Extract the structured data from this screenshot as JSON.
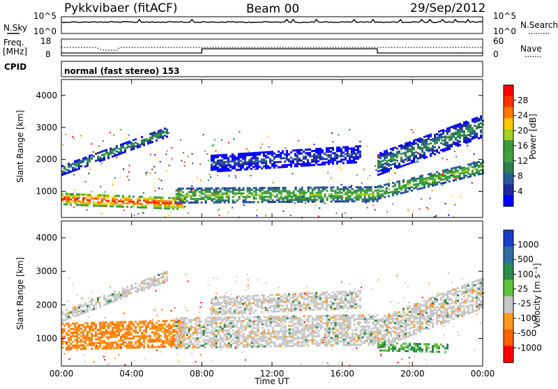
{
  "header": {
    "station": "Pykkvibaer (fitACF)",
    "beam": "Beam 00",
    "date": "29/Sep/2012"
  },
  "status_panels": {
    "nsky_label": "N.Sky",
    "nsky_ticks": [
      "10^5",
      "10^0"
    ],
    "nsearch_label": "N.Search",
    "nsearch_ticks": [
      "10^5",
      "10^0"
    ],
    "freq_label_1": "Freq.",
    "freq_label_2": "[MHz]",
    "freq_ticks": [
      "18",
      "8"
    ],
    "nave_label": "Nave",
    "nave_ticks": [
      "60",
      "0"
    ],
    "cpid_label": "CPID",
    "cpid_text": "normal (fast stereo) 153"
  },
  "axes": {
    "ylabel": "Slant Range [km]",
    "yticks": [
      "4000",
      "3000",
      "2000",
      "1000"
    ],
    "xlabel": "Time UT",
    "xticks": [
      "00:00",
      "04:00",
      "08:00",
      "12:00",
      "16:00",
      "20:00",
      "00:00"
    ]
  },
  "chart_data": [
    {
      "type": "heatmap",
      "title": "",
      "quantity": "Power",
      "colorbar_label": "Power [dB]",
      "colorbar_ticks": [
        "28",
        "24",
        "20",
        "16",
        "12",
        "8",
        "4"
      ],
      "colorbar_colors": [
        "#ff0000",
        "#ff3000",
        "#ff7800",
        "#ffc800",
        "#a0d020",
        "#3c9c3c",
        "#40a040",
        "#2e7d4e",
        "#2a5a9a",
        "#1e2aa0",
        "#0000ff"
      ],
      "xlabel": "Time UT",
      "ylabel": "Slant Range [km]",
      "xlim_hours": [
        0,
        24
      ],
      "ylim_km": [
        180,
        4500
      ],
      "bands": [
        {
          "start_h": 0.0,
          "end_h": 7.0,
          "r0_km": 800,
          "r1_km": 650,
          "width_km": 350,
          "level": 26
        },
        {
          "start_h": 6.5,
          "end_h": 18.0,
          "r0_km": 900,
          "r1_km": 950,
          "width_km": 450,
          "level": 18
        },
        {
          "start_h": 8.5,
          "end_h": 17.0,
          "r0_km": 1900,
          "r1_km": 2200,
          "width_km": 500,
          "level": 9
        },
        {
          "start_h": 0.0,
          "end_h": 6.0,
          "r0_km": 1700,
          "r1_km": 2900,
          "width_km": 300,
          "level": 14
        },
        {
          "start_h": 18.0,
          "end_h": 24.0,
          "r0_km": 1000,
          "r1_km": 1800,
          "width_km": 400,
          "level": 18
        },
        {
          "start_h": 18.0,
          "end_h": 24.0,
          "r0_km": 1900,
          "r1_km": 3100,
          "width_km": 700,
          "level": 13
        }
      ]
    },
    {
      "type": "heatmap",
      "title": "",
      "quantity": "Velocity",
      "colorbar_label": "Velocity [m s⁻¹]",
      "colorbar_ticks": [
        "1000",
        "500",
        "100",
        "25",
        "-25",
        "-100",
        "-500",
        "-1000"
      ],
      "colorbar_colors": [
        "#1e3cc8",
        "#2e6e9e",
        "#2a8c4a",
        "#60c040",
        "#c8c8c8",
        "#ff9a20",
        "#ff6000",
        "#ff0000"
      ],
      "xlabel": "Time UT",
      "ylabel": "Slant Range [km]",
      "xlim_hours": [
        0,
        24
      ],
      "ylim_km": [
        180,
        4500
      ],
      "bands": [
        {
          "start_h": 0.0,
          "end_h": 7.0,
          "r0_km": 1100,
          "r1_km": 1200,
          "width_km": 800,
          "level": -150
        },
        {
          "start_h": 6.5,
          "end_h": 18.0,
          "r0_km": 1200,
          "r1_km": 1300,
          "width_km": 900,
          "level": 0
        },
        {
          "start_h": 8.5,
          "end_h": 17.0,
          "r0_km": 2000,
          "r1_km": 2200,
          "width_km": 500,
          "level": 0
        },
        {
          "start_h": 0.0,
          "end_h": 6.0,
          "r0_km": 1700,
          "r1_km": 2900,
          "width_km": 300,
          "level": 0
        },
        {
          "start_h": 18.0,
          "end_h": 24.0,
          "r0_km": 1200,
          "r1_km": 2400,
          "width_km": 900,
          "level": 0
        },
        {
          "start_h": 18.0,
          "end_h": 22.0,
          "r0_km": 800,
          "r1_km": 750,
          "width_km": 250,
          "level": 150
        }
      ]
    }
  ]
}
